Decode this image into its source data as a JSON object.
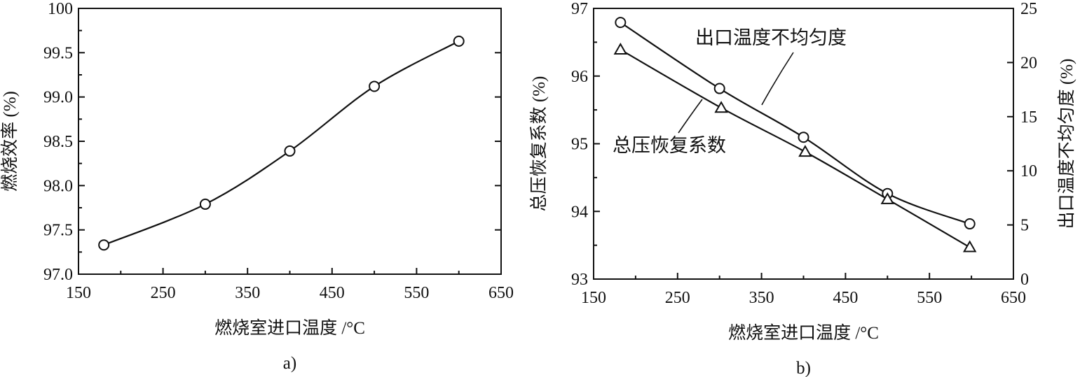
{
  "chart_data": [
    {
      "type": "line",
      "caption": "a)",
      "xlabel": "燃烧室进口温度 /°C",
      "ylabel": "燃烧效率 (%)",
      "xlim": [
        150,
        650
      ],
      "ylim": [
        97.0,
        100
      ],
      "xticks": [
        "150",
        "250",
        "350",
        "450",
        "550",
        "650"
      ],
      "yticks": [
        "97.0",
        "97.5",
        "98.0",
        "98.5",
        "99.0",
        "99.5",
        "100"
      ],
      "grid": false,
      "series": [
        {
          "marker": "circle",
          "x": [
            180,
            300,
            400,
            500,
            600
          ],
          "y": [
            97.33,
            97.79,
            98.39,
            99.12,
            99.63
          ]
        }
      ]
    },
    {
      "type": "line",
      "caption": "b)",
      "xlabel": "燃烧室进口温度 /°C",
      "ylabel": "总压恢复系数 (%)",
      "ylabel_right": "出口温度不均匀度 (%)",
      "xlim": [
        150,
        650
      ],
      "ylim": [
        93,
        97
      ],
      "ylim_right": [
        0,
        25
      ],
      "xticks": [
        "150",
        "250",
        "350",
        "450",
        "550",
        "650"
      ],
      "yticks": [
        "93",
        "94",
        "95",
        "96",
        "97"
      ],
      "yticks_right": [
        "0",
        "5",
        "10",
        "15",
        "20",
        "25"
      ],
      "grid": false,
      "series": [
        {
          "name": "出口温度不均匀度",
          "axis": "right",
          "marker": "circle",
          "x": [
            182,
            300,
            400,
            500,
            598
          ],
          "y": [
            23.7,
            17.6,
            13.1,
            7.9,
            5.1
          ]
        },
        {
          "name": "总压恢复系数",
          "axis": "left",
          "marker": "triangle",
          "x": [
            182,
            302,
            402,
            500,
            598
          ],
          "y": [
            96.39,
            95.53,
            94.88,
            94.18,
            93.47
          ]
        }
      ]
    }
  ]
}
